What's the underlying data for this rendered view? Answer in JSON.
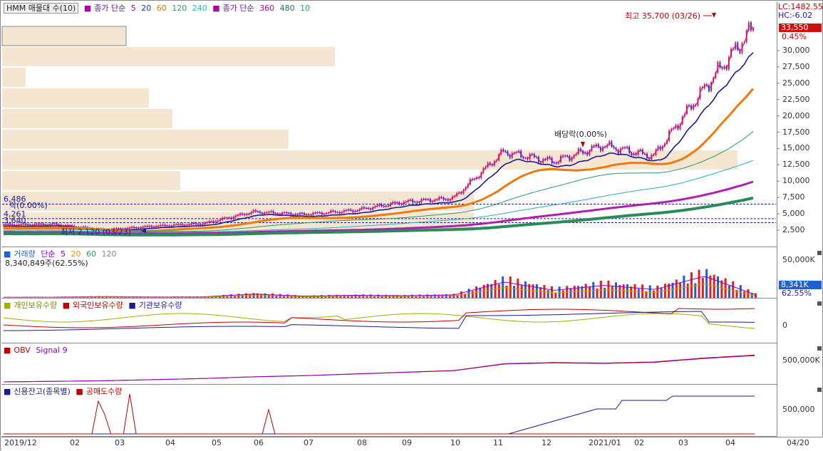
{
  "price_pane": {
    "legend_title": "HMM 매물대 수(10)",
    "legend_close": "종가 단순",
    "legend_close_periods": [
      "5",
      "20",
      "60",
      "120",
      "240"
    ],
    "legend_close2": "종가 단순",
    "legend_close2_periods": [
      "360",
      "480",
      "10"
    ],
    "period_colors": [
      "#8b00c8",
      "#1b9a1b",
      "#e07a00",
      "#2aa0a0",
      "#20c0c0",
      "#b000b0",
      "#1a7a4a",
      "#1a1a90"
    ],
    "high_label": "최고 35,700 (03/26)",
    "low_label": "최저 2,120 (03/23)",
    "dividend_label": "배당락(0.00%)",
    "right_top_labels": [
      "LC:1482.55",
      "HC:-6.02"
    ],
    "current_price": "33,550",
    "change_pct": "0.45%",
    "y_ticks": [
      "30,000",
      "27,500",
      "25,000",
      "22,500",
      "20,000",
      "17,500",
      "15,000",
      "12,500",
      "10,000",
      "7,500",
      "5,000",
      "2,500"
    ],
    "ref_lines": [
      "6,486",
      "4,261",
      "3,640"
    ],
    "ref_tag": "락(0.00%)"
  },
  "volume_pane": {
    "legend": "거래량",
    "ma_label": "단순",
    "ma_periods": [
      "5",
      "20",
      "60",
      "120"
    ],
    "sub_label": "8,340,849주(62.55%)",
    "y_tick": "50,000K",
    "current": "8,341K",
    "pct": "62.55%"
  },
  "holdings_pane": {
    "series": [
      "개인보유수량",
      "외국인보유수량",
      "기관보유수량"
    ],
    "y_tick": "0"
  },
  "obv_pane": {
    "series": [
      "OBV",
      "Signal 9"
    ],
    "y_tick": "500,000K"
  },
  "credit_pane": {
    "series": [
      "신용잔고(종목별)",
      "공매도수량"
    ],
    "y_tick": "500,000"
  },
  "x_labels": [
    "2019/12",
    "02",
    "03",
    "04",
    "05",
    "06",
    "07",
    "08",
    "09",
    "10",
    "11",
    "12",
    "2021/01",
    "02",
    "03",
    "04",
    "04/20"
  ],
  "chart_data": [
    {
      "type": "candlestick",
      "title": "HMM",
      "ylim": [
        0,
        37500
      ],
      "x": [
        "2019/12",
        "02",
        "03",
        "04",
        "05",
        "06",
        "07",
        "08",
        "09",
        "10",
        "11",
        "12",
        "2021/01",
        "02",
        "03",
        "04"
      ],
      "close": [
        3300,
        3400,
        2500,
        3100,
        3500,
        5300,
        4900,
        5500,
        6800,
        7400,
        14500,
        13000,
        15500,
        13800,
        24000,
        33550
      ],
      "annotations": {
        "high": 35700,
        "low": 2120,
        "dividend": "배당락(0.00%)"
      },
      "volume_profile_widths": [
        0.16,
        0.43,
        0.03,
        0.19,
        0.22,
        0.37,
        0.95,
        0.23,
        0.61,
        0.61
      ]
    },
    {
      "type": "bar",
      "title": "거래량",
      "ylim": [
        0,
        60000
      ],
      "x": [
        "2019/12",
        "02",
        "03",
        "04",
        "05",
        "06",
        "07",
        "08",
        "09",
        "10",
        "11",
        "12",
        "2021/01",
        "02",
        "03",
        "04"
      ],
      "values": [
        1500,
        1800,
        3000,
        2200,
        2500,
        9000,
        4000,
        6000,
        5000,
        7000,
        38000,
        18000,
        30000,
        20000,
        52000,
        8341
      ]
    },
    {
      "type": "line",
      "title": "OBV",
      "x": [
        "2019/12",
        "02",
        "03",
        "04",
        "05",
        "06",
        "07",
        "08",
        "09",
        "10",
        "11",
        "12",
        "2021/01",
        "02",
        "03",
        "04"
      ],
      "series": [
        {
          "name": "OBV",
          "values": [
            0,
            10000,
            20000,
            40000,
            60000,
            90000,
            110000,
            140000,
            170000,
            200000,
            320000,
            340000,
            330000,
            350000,
            420000,
            470000
          ]
        }
      ]
    }
  ]
}
